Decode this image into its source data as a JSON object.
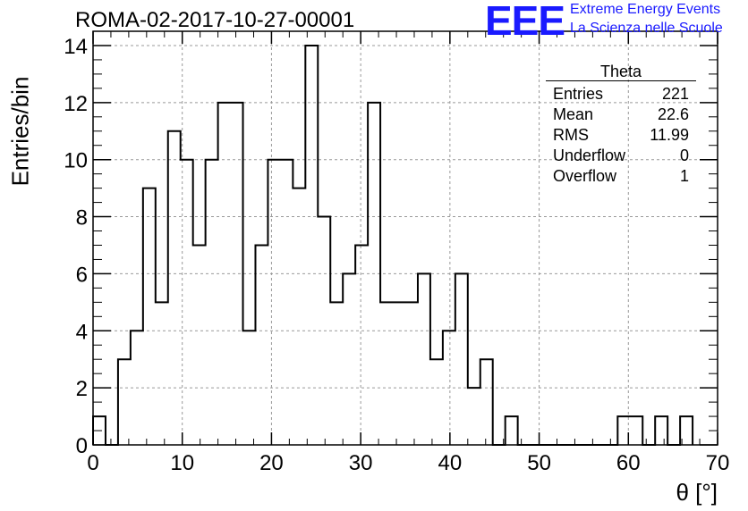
{
  "header": {
    "title": "ROMA-02-2017-10-27-00001",
    "logo_text": "EEE",
    "logo_line1": "Extreme Energy Events",
    "logo_line2": "La Scienza nelle Scuole"
  },
  "stats_box": {
    "title": "Theta",
    "rows": [
      {
        "label": "Entries",
        "value": "221"
      },
      {
        "label": "Mean",
        "value": "22.6"
      },
      {
        "label": "RMS",
        "value": "11.99"
      },
      {
        "label": "Underflow",
        "value": "0"
      },
      {
        "label": "Overflow",
        "value": "1"
      }
    ]
  },
  "chart_data": {
    "type": "histogram",
    "title": "ROMA-02-2017-10-27-00001",
    "xlabel": "θ [°]",
    "ylabel": "Entries/bin",
    "xlim": [
      0,
      70
    ],
    "ylim": [
      0,
      14.5
    ],
    "bin_width": 1.4,
    "bin_edges_start": 0,
    "counts": [
      1,
      0,
      3,
      4,
      9,
      5,
      11,
      10,
      7,
      10,
      12,
      12,
      4,
      7,
      10,
      10,
      9,
      14,
      8,
      5,
      6,
      7,
      12,
      5,
      5,
      5,
      6,
      3,
      4,
      6,
      2,
      3,
      0,
      1,
      0,
      0,
      0,
      0,
      0,
      0,
      0,
      0,
      1,
      1,
      0,
      1,
      0,
      1
    ],
    "x_ticks": [
      "0",
      "10",
      "20",
      "30",
      "40",
      "50",
      "60",
      "70"
    ],
    "y_ticks": [
      "0",
      "2",
      "4",
      "6",
      "8",
      "10",
      "12",
      "14"
    ],
    "grid": true,
    "colors": {
      "line": "#000000",
      "grid": "#999999",
      "logo": "#1a1aff"
    }
  }
}
